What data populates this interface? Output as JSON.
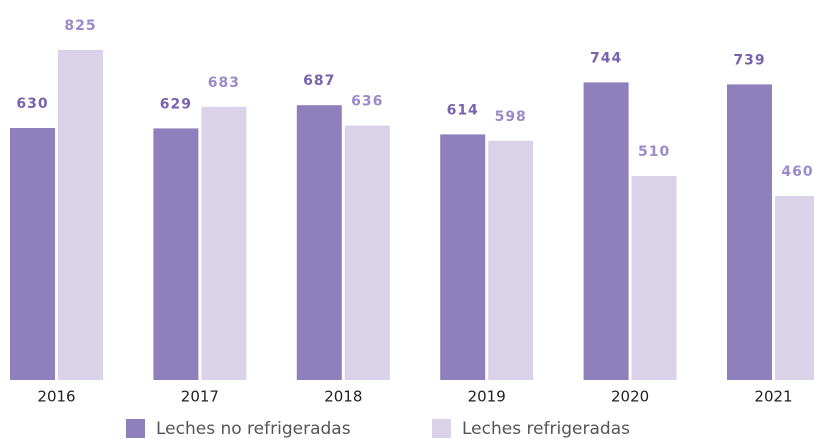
{
  "chart_data": {
    "type": "bar",
    "categories": [
      "2016",
      "2017",
      "2018",
      "2019",
      "2020",
      "2021"
    ],
    "series": [
      {
        "name": "Leches no refrigeradas",
        "color": "#8e80bc",
        "values": [
          630,
          629,
          687,
          614,
          744,
          739
        ]
      },
      {
        "name": "Leches refrigeradas",
        "color": "#d9d2e9",
        "values": [
          825,
          683,
          636,
          598,
          510,
          460
        ]
      }
    ]
  }
}
